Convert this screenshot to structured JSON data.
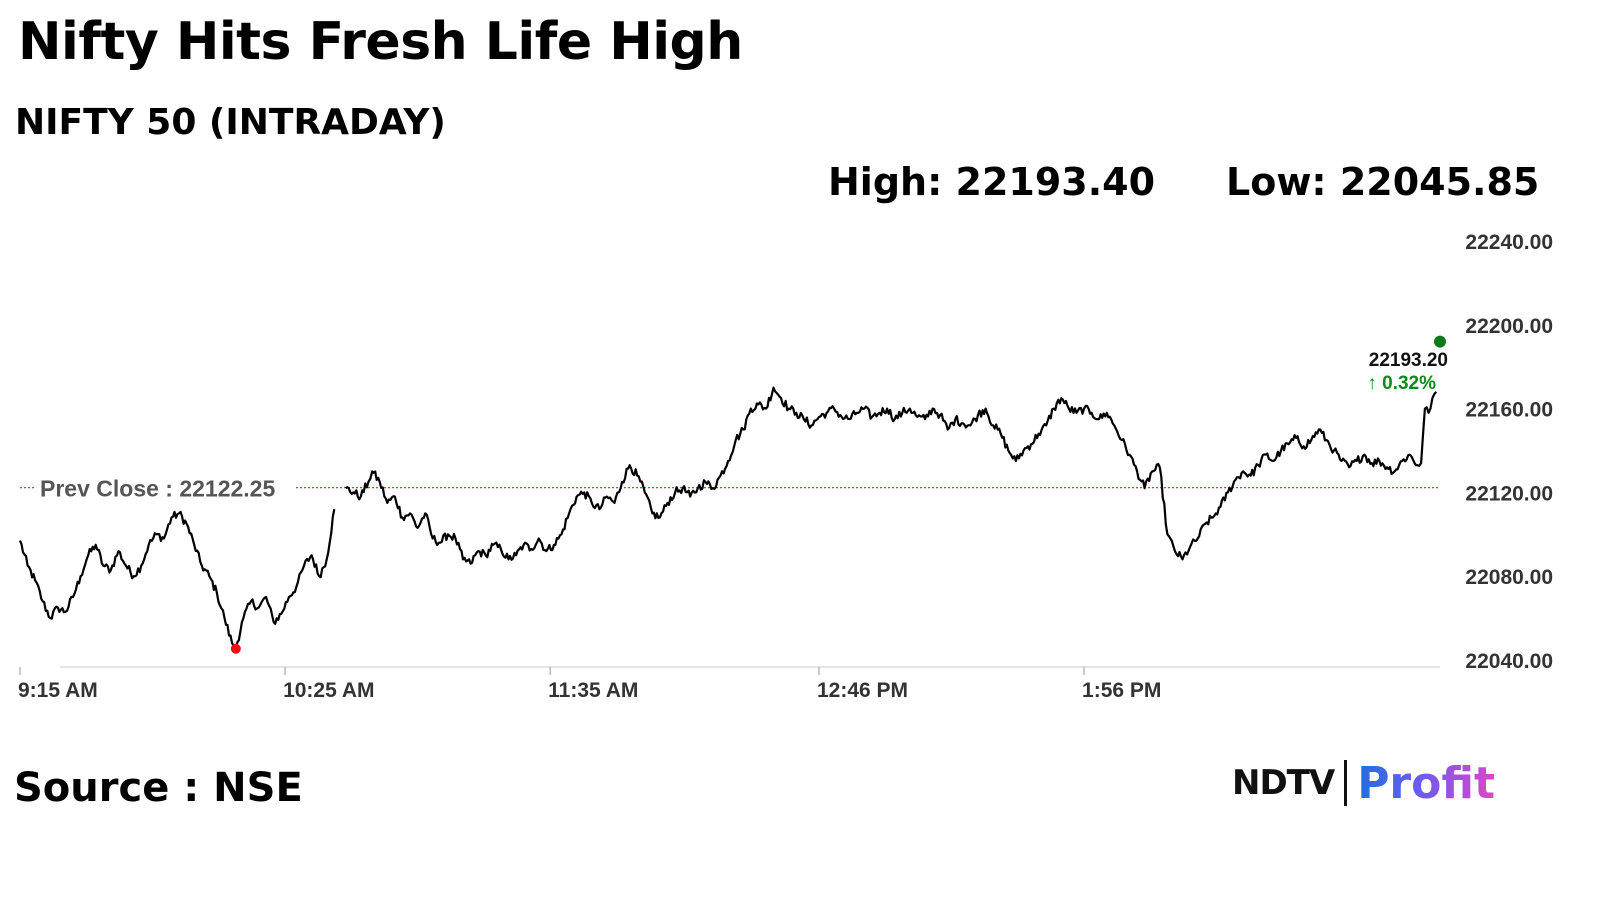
{
  "header": {
    "title": "Nifty Hits Fresh Life High",
    "subtitle": "NIFTY 50 (INTRADAY)",
    "high_label": "High: 22193.40",
    "low_label": "Low: 22045.85"
  },
  "footer": {
    "source": "Source : NSE",
    "logo_left": "NDTV",
    "logo_right": "Profit"
  },
  "colors": {
    "line": "#000000",
    "prev_close_line": "#cc2222",
    "prev_close_text": "#555555",
    "low_marker": "#ee1111",
    "high_marker": "#0a7a1a",
    "change_up": "#0a8a1a",
    "axis_text": "#333333"
  },
  "chart_data": {
    "type": "line",
    "title": "NIFTY 50 (INTRADAY)",
    "xlabel": "",
    "ylabel": "",
    "ylim": [
      22040,
      22240
    ],
    "y_ticks": [
      "22240.00",
      "22200.00",
      "22160.00",
      "22120.00",
      "22080.00",
      "22040.00"
    ],
    "x_ticks": [
      "9:15 AM",
      "10:25 AM",
      "11:35 AM",
      "12:46 PM",
      "1:56 PM"
    ],
    "x_start": "9:15 AM",
    "x_end": "3:30 PM",
    "grid": false,
    "prev_close": 22122.25,
    "prev_close_label": "Prev Close : 22122.25",
    "last_value_label": "22193.20",
    "change_label": "↑ 0.32%",
    "high": 22193.4,
    "low": 22045.85,
    "series": [
      {
        "points": [
          [
            "9:15",
            22097
          ],
          [
            "9:17",
            22085
          ],
          [
            "9:19",
            22078
          ],
          [
            "9:21",
            22068
          ],
          [
            "9:23",
            22060
          ],
          [
            "9:25",
            22065
          ],
          [
            "9:27",
            22063
          ],
          [
            "9:29",
            22070
          ],
          [
            "9:31",
            22080
          ],
          [
            "9:33",
            22090
          ],
          [
            "9:35",
            22095
          ],
          [
            "9:37",
            22085
          ],
          [
            "9:39",
            22083
          ],
          [
            "9:41",
            22092
          ],
          [
            "9:43",
            22085
          ],
          [
            "9:45",
            22080
          ],
          [
            "9:47",
            22085
          ],
          [
            "9:49",
            22095
          ],
          [
            "9:51",
            22100
          ],
          [
            "9:53",
            22098
          ],
          [
            "9:55",
            22108
          ],
          [
            "9:57",
            22110
          ],
          [
            "9:59",
            22105
          ],
          [
            "10:01",
            22095
          ],
          [
            "10:03",
            22085
          ],
          [
            "10:05",
            22080
          ],
          [
            "10:07",
            22072
          ],
          [
            "10:09",
            22060
          ],
          [
            "10:11",
            22048
          ],
          [
            "10:12",
            22046
          ],
          [
            "10:14",
            22060
          ],
          [
            "10:16",
            22068
          ],
          [
            "10:18",
            22065
          ],
          [
            "10:20",
            22070
          ],
          [
            "10:22",
            22058
          ],
          [
            "10:24",
            22062
          ],
          [
            "10:26",
            22070
          ],
          [
            "10:28",
            22075
          ],
          [
            "10:30",
            22085
          ],
          [
            "10:32",
            22090
          ],
          [
            "10:34",
            22080
          ],
          [
            "10:36",
            22088
          ],
          [
            "10:38",
            22112
          ],
          [
            "10:41",
            22122
          ],
          [
            "10:43",
            22120
          ],
          [
            "10:45",
            22118
          ],
          [
            "10:47",
            22125
          ],
          [
            "10:48",
            22130
          ],
          [
            "10:50",
            22125
          ],
          [
            "10:52",
            22115
          ],
          [
            "10:54",
            22118
          ],
          [
            "10:56",
            22108
          ],
          [
            "10:58",
            22110
          ],
          [
            "11:00",
            22103
          ],
          [
            "11:02",
            22110
          ],
          [
            "11:04",
            22098
          ],
          [
            "11:06",
            22096
          ],
          [
            "11:08",
            22100
          ],
          [
            "11:10",
            22098
          ],
          [
            "11:12",
            22088
          ],
          [
            "11:14",
            22086
          ],
          [
            "11:16",
            22092
          ],
          [
            "11:18",
            22090
          ],
          [
            "11:20",
            22095
          ],
          [
            "11:22",
            22093
          ],
          [
            "11:24",
            22088
          ],
          [
            "11:26",
            22090
          ],
          [
            "11:28",
            22095
          ],
          [
            "11:30",
            22093
          ],
          [
            "11:32",
            22098
          ],
          [
            "11:34",
            22092
          ],
          [
            "11:36",
            22095
          ],
          [
            "11:38",
            22100
          ],
          [
            "11:40",
            22110
          ],
          [
            "11:42",
            22118
          ],
          [
            "11:44",
            22120
          ],
          [
            "11:46",
            22115
          ],
          [
            "11:48",
            22112
          ],
          [
            "11:50",
            22118
          ],
          [
            "11:52",
            22115
          ],
          [
            "11:54",
            22125
          ],
          [
            "11:56",
            22133
          ],
          [
            "11:58",
            22128
          ],
          [
            "12:00",
            22120
          ],
          [
            "12:02",
            22110
          ],
          [
            "12:04",
            22108
          ],
          [
            "12:06",
            22115
          ],
          [
            "12:08",
            22120
          ],
          [
            "12:10",
            22122
          ],
          [
            "12:12",
            22118
          ],
          [
            "12:14",
            22122
          ],
          [
            "12:16",
            22125
          ],
          [
            "12:18",
            22122
          ],
          [
            "12:20",
            22128
          ],
          [
            "12:22",
            22135
          ],
          [
            "12:24",
            22145
          ],
          [
            "12:26",
            22150
          ],
          [
            "12:28",
            22160
          ],
          [
            "12:30",
            22162
          ],
          [
            "12:32",
            22160
          ],
          [
            "12:34",
            22170
          ],
          [
            "12:36",
            22165
          ],
          [
            "12:38",
            22160
          ],
          [
            "12:40",
            22158
          ],
          [
            "12:42",
            22155
          ],
          [
            "12:44",
            22152
          ],
          [
            "12:46",
            22156
          ],
          [
            "12:48",
            22158
          ],
          [
            "12:50",
            22160
          ],
          [
            "12:52",
            22156
          ],
          [
            "12:54",
            22155
          ],
          [
            "12:56",
            22158
          ],
          [
            "12:58",
            22160
          ],
          [
            "13:00",
            22156
          ],
          [
            "13:02",
            22158
          ],
          [
            "13:04",
            22160
          ],
          [
            "13:06",
            22155
          ],
          [
            "13:08",
            22158
          ],
          [
            "13:10",
            22160
          ],
          [
            "13:12",
            22156
          ],
          [
            "13:14",
            22155
          ],
          [
            "13:16",
            22160
          ],
          [
            "13:18",
            22157
          ],
          [
            "13:20",
            22150
          ],
          [
            "13:22",
            22155
          ],
          [
            "13:24",
            22153
          ],
          [
            "13:26",
            22152
          ],
          [
            "13:28",
            22157
          ],
          [
            "13:30",
            22160
          ],
          [
            "13:32",
            22152
          ],
          [
            "13:34",
            22148
          ],
          [
            "13:36",
            22140
          ],
          [
            "13:38",
            22135
          ],
          [
            "13:40",
            22140
          ],
          [
            "13:42",
            22143
          ],
          [
            "13:44",
            22148
          ],
          [
            "13:46",
            22152
          ],
          [
            "13:48",
            22160
          ],
          [
            "13:50",
            22165
          ],
          [
            "13:52",
            22160
          ],
          [
            "13:54",
            22158
          ],
          [
            "13:56",
            22160
          ],
          [
            "13:58",
            22158
          ],
          [
            "14:00",
            22155
          ],
          [
            "14:02",
            22158
          ],
          [
            "14:04",
            22152
          ],
          [
            "14:06",
            22145
          ],
          [
            "14:08",
            22138
          ],
          [
            "14:10",
            22130
          ],
          [
            "14:12",
            22122
          ],
          [
            "14:14",
            22130
          ],
          [
            "14:16",
            22132
          ],
          [
            "14:18",
            22100
          ],
          [
            "14:20",
            22092
          ],
          [
            "14:22",
            22088
          ],
          [
            "14:24",
            22094
          ],
          [
            "14:26",
            22098
          ],
          [
            "14:28",
            22105
          ],
          [
            "14:30",
            22108
          ],
          [
            "14:32",
            22113
          ],
          [
            "14:34",
            22120
          ],
          [
            "14:36",
            22126
          ],
          [
            "14:38",
            22130
          ],
          [
            "14:40",
            22128
          ],
          [
            "14:42",
            22133
          ],
          [
            "14:44",
            22138
          ],
          [
            "14:46",
            22135
          ],
          [
            "14:48",
            22140
          ],
          [
            "14:50",
            22143
          ],
          [
            "14:52",
            22146
          ],
          [
            "14:54",
            22142
          ],
          [
            "14:56",
            22145
          ],
          [
            "14:58",
            22150
          ],
          [
            "15:00",
            22145
          ],
          [
            "15:02",
            22140
          ],
          [
            "15:04",
            22135
          ],
          [
            "15:06",
            22132
          ],
          [
            "15:08",
            22135
          ],
          [
            "15:10",
            22138
          ],
          [
            "15:12",
            22134
          ],
          [
            "15:14",
            22135
          ],
          [
            "15:16",
            22132
          ],
          [
            "15:18",
            22130
          ],
          [
            "15:20",
            22135
          ],
          [
            "15:22",
            22138
          ],
          [
            "15:24",
            22133
          ],
          [
            "15:25",
            22134
          ],
          [
            "15:26",
            22160
          ],
          [
            "15:27",
            22158
          ],
          [
            "15:28",
            22165
          ],
          [
            "15:29",
            22168
          ]
        ],
        "segment_breaks_after": [
          "10:38"
        ]
      }
    ]
  }
}
